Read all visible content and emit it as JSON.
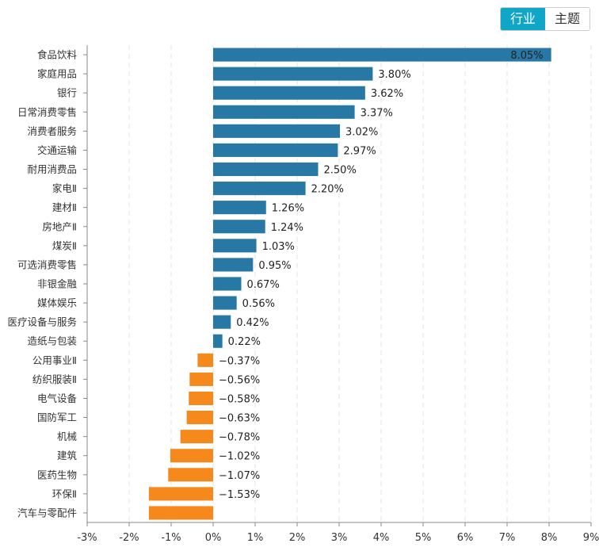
{
  "toggle": {
    "options": [
      "行业",
      "主题"
    ],
    "selected": "行业",
    "accent": "#0fa6c8"
  },
  "chart_data": {
    "type": "bar",
    "orientation": "horizontal",
    "categories": [
      "食品饮料",
      "家庭用品",
      "银行",
      "日常消费零售",
      "消费者服务",
      "交通运输",
      "耐用消费品",
      "家电Ⅱ",
      "建材Ⅱ",
      "房地产Ⅱ",
      "煤炭Ⅱ",
      "可选消费零售",
      "非银金融",
      "媒体娱乐",
      "医疗设备与服务",
      "造纸与包装",
      "公用事业Ⅱ",
      "纺织服装Ⅱ",
      "电气设备",
      "国防军工",
      "机械",
      "建筑",
      "医药生物",
      "环保Ⅱ",
      "汽车与零配件"
    ],
    "values": [
      8.05,
      3.8,
      3.62,
      3.37,
      3.02,
      2.97,
      2.5,
      2.2,
      1.26,
      1.24,
      1.03,
      0.95,
      0.67,
      0.56,
      0.42,
      0.22,
      -0.37,
      -0.56,
      -0.58,
      -0.63,
      -0.78,
      -1.02,
      -1.07,
      -1.53,
      -1.53
    ],
    "data_labels": [
      "8.05%",
      "3.80%",
      "3.62%",
      "3.37%",
      "3.02%",
      "2.97%",
      "2.50%",
      "2.20%",
      "1.26%",
      "1.24%",
      "1.03%",
      "0.95%",
      "0.67%",
      "0.56%",
      "0.42%",
      "0.22%",
      "−0.37%",
      "−0.56%",
      "−0.58%",
      "−0.63%",
      "−0.78%",
      "−1.02%",
      "−1.07%",
      "−1.53%",
      ""
    ],
    "xlim": [
      -3,
      9
    ],
    "x_ticks": [
      "-3%",
      "-2%",
      "-1%",
      "0%",
      "1%",
      "2%",
      "3%",
      "4%",
      "5%",
      "6%",
      "7%",
      "8%",
      "9%"
    ],
    "grid": "vertical dashed",
    "colors": {
      "positive": "#2878a5",
      "negative": "#f5891c"
    }
  }
}
